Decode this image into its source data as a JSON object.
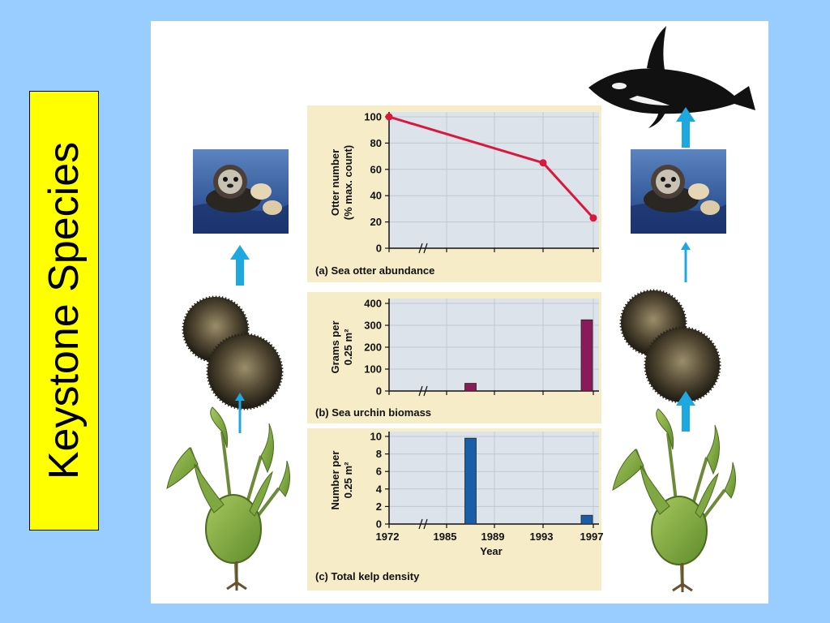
{
  "slide": {
    "title": "Keystone Species",
    "colors": {
      "background": "#99ccff",
      "title_box": "#ffff00",
      "arrow": "#1fa8e0",
      "plot_bg": "#dde3ea",
      "caption_bg": "#f6ecc8"
    }
  },
  "illustrations": {
    "left": [
      "sea-otter-photo",
      "sea-urchin-pair",
      "kelp-plant"
    ],
    "right": [
      "orca-whale",
      "sea-otter-photo",
      "sea-urchin-pair",
      "kelp-plant"
    ]
  },
  "chart_data": [
    {
      "type": "line",
      "caption": "(a) Sea otter abundance",
      "ylabel": "Otter number (% max. count)",
      "ylabel_lines": [
        "Otter number",
        "(% max. count)"
      ],
      "x": [
        1972,
        1993,
        1997
      ],
      "values": [
        100,
        65,
        23
      ],
      "ylim": [
        0,
        100
      ],
      "yticks": [
        0,
        20,
        40,
        60,
        80,
        100
      ],
      "color": "#d8183c",
      "axis_break": true
    },
    {
      "type": "bar",
      "caption": "(b) Sea urchin biomass",
      "ylabel": "Grams per 0.25 m²",
      "ylabel_lines": [
        "Grams per",
        "0.25 m²"
      ],
      "x": [
        1987,
        1997
      ],
      "values": [
        35,
        325
      ],
      "ylim": [
        0,
        400
      ],
      "yticks": [
        0,
        100,
        200,
        300,
        400
      ],
      "color": "#8b1a5a",
      "axis_break": true
    },
    {
      "type": "bar",
      "caption": "(c) Total kelp density",
      "ylabel": "Number per 0.25 m²",
      "ylabel_lines": [
        "Number per",
        "0.25 m²"
      ],
      "xlabel": "Year",
      "x": [
        1987,
        1997
      ],
      "values": [
        9.8,
        1
      ],
      "ylim": [
        0,
        10
      ],
      "yticks": [
        0,
        2,
        4,
        6,
        8,
        10
      ],
      "xtick_labels": [
        "1972",
        "1985",
        "1989",
        "1993",
        "1997"
      ],
      "color": "#1a5ea8",
      "axis_break": true
    }
  ]
}
